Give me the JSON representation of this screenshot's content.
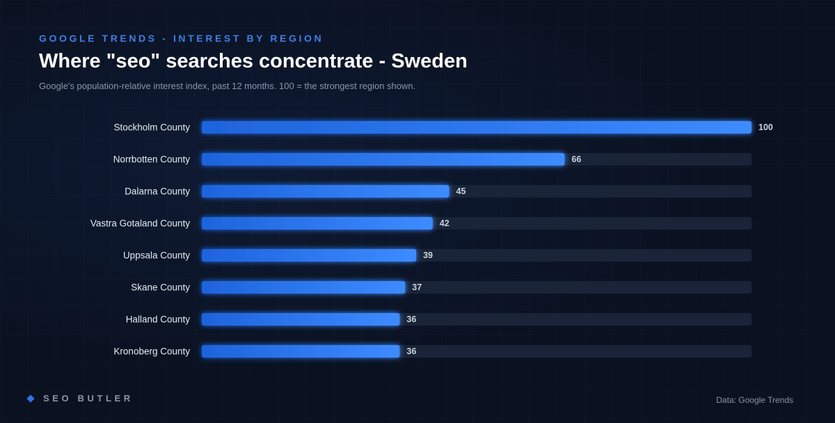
{
  "header": {
    "eyebrow": "GOOGLE TRENDS - INTEREST BY REGION",
    "title": "Where \"seo\" searches concentrate - Sweden",
    "subtitle": "Google's population-relative interest index, past 12 months. 100 = the strongest region shown."
  },
  "footer": {
    "brand": "SEO BUTLER",
    "source": "Data: Google Trends"
  },
  "colors": {
    "bar_start": "#1e63dc",
    "bar_end": "#3d8bff",
    "track": "#1a2438",
    "label": "#e6ebf2",
    "value": "#c9d2de"
  },
  "chart_data": {
    "type": "bar",
    "orientation": "horizontal",
    "categories": [
      "Stockholm County",
      "Norrbotten County",
      "Dalarna County",
      "Vastra Gotaland County",
      "Uppsala County",
      "Skane County",
      "Halland County",
      "Kronoberg County"
    ],
    "values": [
      100,
      66,
      45,
      42,
      39,
      37,
      36,
      36
    ],
    "xlim": [
      0,
      100
    ],
    "grid": false,
    "legend": "none"
  }
}
